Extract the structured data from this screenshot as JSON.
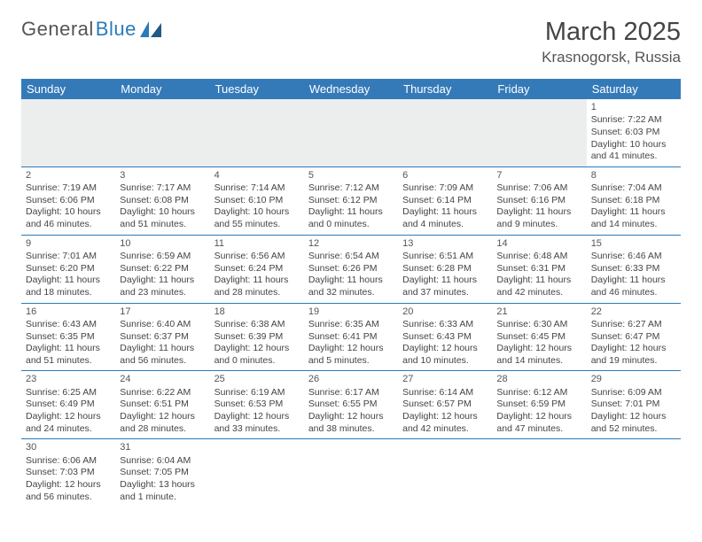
{
  "logo": {
    "name": "General",
    "accent": "Blue"
  },
  "title": "March 2025",
  "location": "Krasnogorsk, Russia",
  "colors": {
    "header_bg": "#357ab8",
    "header_text": "#ffffff",
    "border": "#2a7bb8",
    "text": "#444444",
    "lead_bg": "#eceded",
    "logo_accent": "#2a7bb8"
  },
  "day_headers": [
    "Sunday",
    "Monday",
    "Tuesday",
    "Wednesday",
    "Thursday",
    "Friday",
    "Saturday"
  ],
  "weeks": [
    [
      null,
      null,
      null,
      null,
      null,
      null,
      {
        "n": "1",
        "sr": "Sunrise: 7:22 AM",
        "ss": "Sunset: 6:03 PM",
        "dl1": "Daylight: 10 hours",
        "dl2": "and 41 minutes."
      }
    ],
    [
      {
        "n": "2",
        "sr": "Sunrise: 7:19 AM",
        "ss": "Sunset: 6:06 PM",
        "dl1": "Daylight: 10 hours",
        "dl2": "and 46 minutes."
      },
      {
        "n": "3",
        "sr": "Sunrise: 7:17 AM",
        "ss": "Sunset: 6:08 PM",
        "dl1": "Daylight: 10 hours",
        "dl2": "and 51 minutes."
      },
      {
        "n": "4",
        "sr": "Sunrise: 7:14 AM",
        "ss": "Sunset: 6:10 PM",
        "dl1": "Daylight: 10 hours",
        "dl2": "and 55 minutes."
      },
      {
        "n": "5",
        "sr": "Sunrise: 7:12 AM",
        "ss": "Sunset: 6:12 PM",
        "dl1": "Daylight: 11 hours",
        "dl2": "and 0 minutes."
      },
      {
        "n": "6",
        "sr": "Sunrise: 7:09 AM",
        "ss": "Sunset: 6:14 PM",
        "dl1": "Daylight: 11 hours",
        "dl2": "and 4 minutes."
      },
      {
        "n": "7",
        "sr": "Sunrise: 7:06 AM",
        "ss": "Sunset: 6:16 PM",
        "dl1": "Daylight: 11 hours",
        "dl2": "and 9 minutes."
      },
      {
        "n": "8",
        "sr": "Sunrise: 7:04 AM",
        "ss": "Sunset: 6:18 PM",
        "dl1": "Daylight: 11 hours",
        "dl2": "and 14 minutes."
      }
    ],
    [
      {
        "n": "9",
        "sr": "Sunrise: 7:01 AM",
        "ss": "Sunset: 6:20 PM",
        "dl1": "Daylight: 11 hours",
        "dl2": "and 18 minutes."
      },
      {
        "n": "10",
        "sr": "Sunrise: 6:59 AM",
        "ss": "Sunset: 6:22 PM",
        "dl1": "Daylight: 11 hours",
        "dl2": "and 23 minutes."
      },
      {
        "n": "11",
        "sr": "Sunrise: 6:56 AM",
        "ss": "Sunset: 6:24 PM",
        "dl1": "Daylight: 11 hours",
        "dl2": "and 28 minutes."
      },
      {
        "n": "12",
        "sr": "Sunrise: 6:54 AM",
        "ss": "Sunset: 6:26 PM",
        "dl1": "Daylight: 11 hours",
        "dl2": "and 32 minutes."
      },
      {
        "n": "13",
        "sr": "Sunrise: 6:51 AM",
        "ss": "Sunset: 6:28 PM",
        "dl1": "Daylight: 11 hours",
        "dl2": "and 37 minutes."
      },
      {
        "n": "14",
        "sr": "Sunrise: 6:48 AM",
        "ss": "Sunset: 6:31 PM",
        "dl1": "Daylight: 11 hours",
        "dl2": "and 42 minutes."
      },
      {
        "n": "15",
        "sr": "Sunrise: 6:46 AM",
        "ss": "Sunset: 6:33 PM",
        "dl1": "Daylight: 11 hours",
        "dl2": "and 46 minutes."
      }
    ],
    [
      {
        "n": "16",
        "sr": "Sunrise: 6:43 AM",
        "ss": "Sunset: 6:35 PM",
        "dl1": "Daylight: 11 hours",
        "dl2": "and 51 minutes."
      },
      {
        "n": "17",
        "sr": "Sunrise: 6:40 AM",
        "ss": "Sunset: 6:37 PM",
        "dl1": "Daylight: 11 hours",
        "dl2": "and 56 minutes."
      },
      {
        "n": "18",
        "sr": "Sunrise: 6:38 AM",
        "ss": "Sunset: 6:39 PM",
        "dl1": "Daylight: 12 hours",
        "dl2": "and 0 minutes."
      },
      {
        "n": "19",
        "sr": "Sunrise: 6:35 AM",
        "ss": "Sunset: 6:41 PM",
        "dl1": "Daylight: 12 hours",
        "dl2": "and 5 minutes."
      },
      {
        "n": "20",
        "sr": "Sunrise: 6:33 AM",
        "ss": "Sunset: 6:43 PM",
        "dl1": "Daylight: 12 hours",
        "dl2": "and 10 minutes."
      },
      {
        "n": "21",
        "sr": "Sunrise: 6:30 AM",
        "ss": "Sunset: 6:45 PM",
        "dl1": "Daylight: 12 hours",
        "dl2": "and 14 minutes."
      },
      {
        "n": "22",
        "sr": "Sunrise: 6:27 AM",
        "ss": "Sunset: 6:47 PM",
        "dl1": "Daylight: 12 hours",
        "dl2": "and 19 minutes."
      }
    ],
    [
      {
        "n": "23",
        "sr": "Sunrise: 6:25 AM",
        "ss": "Sunset: 6:49 PM",
        "dl1": "Daylight: 12 hours",
        "dl2": "and 24 minutes."
      },
      {
        "n": "24",
        "sr": "Sunrise: 6:22 AM",
        "ss": "Sunset: 6:51 PM",
        "dl1": "Daylight: 12 hours",
        "dl2": "and 28 minutes."
      },
      {
        "n": "25",
        "sr": "Sunrise: 6:19 AM",
        "ss": "Sunset: 6:53 PM",
        "dl1": "Daylight: 12 hours",
        "dl2": "and 33 minutes."
      },
      {
        "n": "26",
        "sr": "Sunrise: 6:17 AM",
        "ss": "Sunset: 6:55 PM",
        "dl1": "Daylight: 12 hours",
        "dl2": "and 38 minutes."
      },
      {
        "n": "27",
        "sr": "Sunrise: 6:14 AM",
        "ss": "Sunset: 6:57 PM",
        "dl1": "Daylight: 12 hours",
        "dl2": "and 42 minutes."
      },
      {
        "n": "28",
        "sr": "Sunrise: 6:12 AM",
        "ss": "Sunset: 6:59 PM",
        "dl1": "Daylight: 12 hours",
        "dl2": "and 47 minutes."
      },
      {
        "n": "29",
        "sr": "Sunrise: 6:09 AM",
        "ss": "Sunset: 7:01 PM",
        "dl1": "Daylight: 12 hours",
        "dl2": "and 52 minutes."
      }
    ],
    [
      {
        "n": "30",
        "sr": "Sunrise: 6:06 AM",
        "ss": "Sunset: 7:03 PM",
        "dl1": "Daylight: 12 hours",
        "dl2": "and 56 minutes."
      },
      {
        "n": "31",
        "sr": "Sunrise: 6:04 AM",
        "ss": "Sunset: 7:05 PM",
        "dl1": "Daylight: 13 hours",
        "dl2": "and 1 minute."
      },
      null,
      null,
      null,
      null,
      null
    ]
  ]
}
